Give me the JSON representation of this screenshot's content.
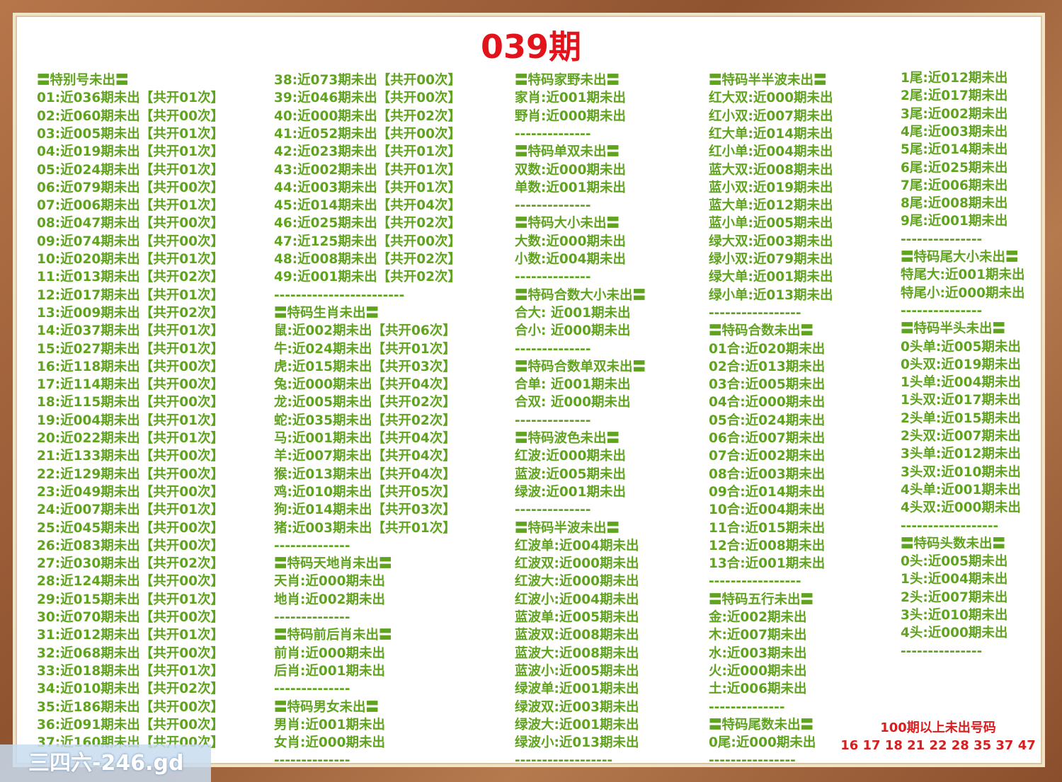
{
  "title": "039期",
  "columns": [
    {
      "lines": [
        "〓特别号未出〓",
        "01:近036期未出【共开01次】",
        "02:近060期未出【共开00次】",
        "03:近005期未出【共开01次】",
        "04:近019期未出【共开01次】",
        "05:近024期未出【共开01次】",
        "06:近079期未出【共开00次】",
        "07:近006期未出【共开01次】",
        "08:近047期未出【共开00次】",
        "09:近074期未出【共开00次】",
        "10:近020期未出【共开01次】",
        "11:近013期未出【共开02次】",
        "12:近017期未出【共开01次】",
        "13:近009期未出【共开02次】",
        "14:近037期未出【共开01次】",
        "15:近027期未出【共开01次】",
        "16:近118期未出【共开00次】",
        "17:近114期未出【共开00次】",
        "18:近115期未出【共开00次】",
        "19:近004期未出【共开01次】",
        "20:近022期未出【共开01次】",
        "21:近133期未出【共开00次】",
        "22:近129期未出【共开00次】",
        "23:近049期未出【共开00次】",
        "24:近007期未出【共开01次】",
        "25:近045期未出【共开00次】",
        "26:近083期未出【共开00次】",
        "27:近030期未出【共开02次】",
        "28:近124期未出【共开00次】",
        "29:近015期未出【共开01次】",
        "30:近070期未出【共开00次】",
        "31:近012期未出【共开01次】",
        "32:近068期未出【共开00次】",
        "33:近018期未出【共开01次】",
        "34:近010期未出【共开02次】",
        "35:近186期未出【共开00次】",
        "36:近091期未出【共开00次】",
        "37:近160期未出【共开00次】"
      ]
    },
    {
      "lines": [
        "38:近073期未出【共开00次】",
        "39:近046期未出【共开00次】",
        "40:近000期未出【共开02次】",
        "41:近052期未出【共开00次】",
        "42:近023期未出【共开01次】",
        "43:近002期未出【共开01次】",
        "44:近003期未出【共开01次】",
        "45:近014期未出【共开04次】",
        "46:近025期未出【共开02次】",
        "47:近125期未出【共开00次】",
        "48:近008期未出【共开02次】",
        "49:近001期未出【共开02次】",
        "------------------------",
        "〓特码生肖未出〓",
        "鼠:近002期未出【共开06次】",
        "牛:近024期未出【共开01次】",
        "虎:近015期未出【共开03次】",
        "兔:近000期未出【共开04次】",
        "龙:近005期未出【共开02次】",
        "蛇:近035期未出【共开02次】",
        "马:近001期未出【共开04次】",
        "羊:近007期未出【共开04次】",
        "猴:近013期未出【共开04次】",
        "鸡:近010期未出【共开05次】",
        "狗:近014期未出【共开03次】",
        "猪:近003期未出【共开01次】",
        "--------------",
        "〓特码天地肖未出〓",
        "天肖:近000期未出",
        "地肖:近002期未出",
        "--------------",
        "〓特码前后肖未出〓",
        "前肖:近000期未出",
        "后肖:近001期未出",
        "--------------",
        "〓特码男女未出〓",
        "男肖:近001期未出",
        "女肖:近000期未出",
        "--------------"
      ]
    },
    {
      "lines": [
        "〓特码家野未出〓",
        "家肖:近001期未出",
        "野肖:近000期未出",
        "--------------",
        "〓特码单双未出〓",
        "双数:近000期未出",
        "单数:近001期未出",
        "--------------",
        "〓特码大小未出〓",
        "大数:近000期未出",
        "小数:近004期未出",
        "--------------",
        "〓特码合数大小未出〓",
        "合大: 近001期未出",
        "合小: 近000期未出",
        "--------------",
        "〓特码合数单双未出〓",
        "合单: 近001期未出",
        "合双: 近000期未出",
        "--------------",
        "〓特码波色未出〓",
        "红波:近000期未出",
        "蓝波:近005期未出",
        "绿波:近001期未出",
        "--------------",
        "〓特码半波未出〓",
        "红波单:近004期未出",
        "红波双:近000期未出",
        "红波大:近000期未出",
        "红波小:近004期未出",
        "蓝波单:近005期未出",
        "蓝波双:近008期未出",
        "蓝波大:近008期未出",
        "蓝波小:近005期未出",
        "绿波单:近001期未出",
        "绿波双:近003期未出",
        "绿波大:近001期未出",
        "绿波小:近013期未出",
        "------------------"
      ]
    },
    {
      "lines": [
        "〓特码半半波未出〓",
        "红大双:近000期未出",
        "红小双:近007期未出",
        "红大单:近014期未出",
        "红小单:近004期未出",
        "蓝大双:近008期未出",
        "蓝小双:近019期未出",
        "蓝大单:近012期未出",
        "蓝小单:近005期未出",
        "绿大双:近003期未出",
        "绿小双:近079期未出",
        "绿大单:近001期未出",
        "绿小单:近013期未出",
        "-----------------",
        "〓特码合数未出〓",
        "01合:近020期未出",
        "02合:近013期未出",
        "03合:近005期未出",
        "04合:近000期未出",
        "05合:近024期未出",
        "06合:近007期未出",
        "07合:近002期未出",
        "08合:近003期未出",
        "09合:近014期未出",
        "10合:近004期未出",
        "11合:近015期未出",
        "12合:近008期未出",
        "13合:近001期未出",
        "-----------------",
        "〓特码五行未出〓",
        "金:近002期未出",
        "木:近007期未出",
        "水:近003期未出",
        "火:近000期未出",
        "土:近006期未出",
        "--------------",
        "〓特码尾数未出〓",
        "0尾:近000期未出",
        "----------------"
      ]
    },
    {
      "lines": [
        "1尾:近012期未出",
        "2尾:近017期未出",
        "3尾:近002期未出",
        "4尾:近003期未出",
        "5尾:近014期未出",
        "6尾:近025期未出",
        "7尾:近006期未出",
        "8尾:近008期未出",
        "9尾:近001期未出",
        "---------------",
        "〓特码尾大小未出〓",
        "特尾大:近001期未出",
        "特尾小:近000期未出",
        "---------------",
        "〓特码半头未出〓",
        "0头单:近005期未出",
        "0头双:近019期未出",
        "1头单:近004期未出",
        "1头双:近017期未出",
        "2头单:近015期未出",
        "2头双:近007期未出",
        "3头单:近012期未出",
        "3头双:近010期未出",
        "4头单:近001期未出",
        "4头双:近000期未出",
        "------------------",
        "〓特码头数未出〓",
        "0头:近005期未出",
        "1头:近004期未出",
        "2头:近007期未出",
        "3头:近010期未出",
        "4头:近000期未出",
        "---------------"
      ]
    }
  ],
  "footer": {
    "heading": "100期以上未出号码",
    "numbers": "16 17 18 21 22 28 35 37 47"
  },
  "watermark": "三四六-246.gd"
}
